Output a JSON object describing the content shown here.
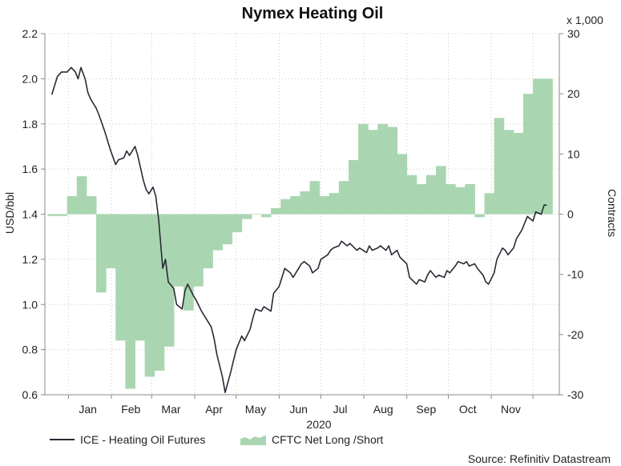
{
  "chart_data": {
    "type": "line",
    "title": "Nymex Heating Oil",
    "xlabel": "2020",
    "ylabel": "USD/bbl",
    "y2label": "Contracts",
    "y2_multiplier_label": "x 1,000",
    "source": "Source: Refinitiv Datastream",
    "x_months": [
      "Jan",
      "Feb",
      "Mar",
      "Apr",
      "May",
      "Jun",
      "Jul",
      "Aug",
      "Sep",
      "Oct",
      "Nov"
    ],
    "ylim": [
      0.6,
      2.2
    ],
    "yticks": [
      "0.6",
      "0.8",
      "1.0",
      "1.2",
      "1.4",
      "1.6",
      "1.8",
      "2.0",
      "2.2"
    ],
    "y2lim": [
      -30,
      30
    ],
    "y2ticks": [
      "-30",
      "-20",
      "-10",
      "0",
      "10",
      "20",
      "30"
    ],
    "grid": true,
    "legend_position": "bottom",
    "series": [
      {
        "name": "ICE - Heating Oil Futures",
        "axis": "left",
        "color": "#2a2a35",
        "points": [
          [
            "2019-12-20",
            1.93
          ],
          [
            "2019-12-24",
            2.01
          ],
          [
            "2019-12-27",
            2.03
          ],
          [
            "2019-12-31",
            2.03
          ],
          [
            "2020-01-03",
            2.05
          ],
          [
            "2020-01-06",
            2.03
          ],
          [
            "2020-01-08",
            2.0
          ],
          [
            "2020-01-10",
            2.05
          ],
          [
            "2020-01-13",
            2.0
          ],
          [
            "2020-01-15",
            1.94
          ],
          [
            "2020-01-17",
            1.91
          ],
          [
            "2020-01-21",
            1.87
          ],
          [
            "2020-01-23",
            1.84
          ],
          [
            "2020-01-27",
            1.77
          ],
          [
            "2020-01-29",
            1.73
          ],
          [
            "2020-01-31",
            1.69
          ],
          [
            "2020-02-04",
            1.62
          ],
          [
            "2020-02-06",
            1.64
          ],
          [
            "2020-02-10",
            1.65
          ],
          [
            "2020-02-12",
            1.68
          ],
          [
            "2020-02-14",
            1.66
          ],
          [
            "2020-02-18",
            1.7
          ],
          [
            "2020-02-20",
            1.66
          ],
          [
            "2020-02-24",
            1.55
          ],
          [
            "2020-02-26",
            1.51
          ],
          [
            "2020-02-28",
            1.49
          ],
          [
            "2020-03-02",
            1.52
          ],
          [
            "2020-03-04",
            1.48
          ],
          [
            "2020-03-06",
            1.38
          ],
          [
            "2020-03-09",
            1.16
          ],
          [
            "2020-03-11",
            1.2
          ],
          [
            "2020-03-13",
            1.1
          ],
          [
            "2020-03-17",
            1.07
          ],
          [
            "2020-03-19",
            1.0
          ],
          [
            "2020-03-23",
            0.98
          ],
          [
            "2020-03-25",
            1.06
          ],
          [
            "2020-03-27",
            1.09
          ],
          [
            "2020-03-31",
            1.04
          ],
          [
            "2020-04-02",
            1.02
          ],
          [
            "2020-04-06",
            0.97
          ],
          [
            "2020-04-08",
            0.95
          ],
          [
            "2020-04-13",
            0.9
          ],
          [
            "2020-04-15",
            0.85
          ],
          [
            "2020-04-17",
            0.78
          ],
          [
            "2020-04-21",
            0.68
          ],
          [
            "2020-04-23",
            0.61
          ],
          [
            "2020-04-27",
            0.7
          ],
          [
            "2020-04-29",
            0.75
          ],
          [
            "2020-05-01",
            0.8
          ],
          [
            "2020-05-05",
            0.86
          ],
          [
            "2020-05-07",
            0.84
          ],
          [
            "2020-05-11",
            0.89
          ],
          [
            "2020-05-13",
            0.94
          ],
          [
            "2020-05-15",
            0.98
          ],
          [
            "2020-05-19",
            0.97
          ],
          [
            "2020-05-21",
            0.99
          ],
          [
            "2020-05-26",
            0.97
          ],
          [
            "2020-05-28",
            1.05
          ],
          [
            "2020-06-01",
            1.08
          ],
          [
            "2020-06-03",
            1.12
          ],
          [
            "2020-06-05",
            1.16
          ],
          [
            "2020-06-09",
            1.14
          ],
          [
            "2020-06-11",
            1.12
          ],
          [
            "2020-06-15",
            1.16
          ],
          [
            "2020-06-17",
            1.18
          ],
          [
            "2020-06-19",
            1.19
          ],
          [
            "2020-06-23",
            1.17
          ],
          [
            "2020-06-25",
            1.14
          ],
          [
            "2020-06-29",
            1.16
          ],
          [
            "2020-07-01",
            1.2
          ],
          [
            "2020-07-06",
            1.22
          ],
          [
            "2020-07-08",
            1.24
          ],
          [
            "2020-07-10",
            1.25
          ],
          [
            "2020-07-14",
            1.26
          ],
          [
            "2020-07-16",
            1.28
          ],
          [
            "2020-07-20",
            1.26
          ],
          [
            "2020-07-22",
            1.27
          ],
          [
            "2020-07-27",
            1.24
          ],
          [
            "2020-07-29",
            1.25
          ],
          [
            "2020-08-03",
            1.23
          ],
          [
            "2020-08-05",
            1.26
          ],
          [
            "2020-08-07",
            1.24
          ],
          [
            "2020-08-11",
            1.25
          ],
          [
            "2020-08-13",
            1.26
          ],
          [
            "2020-08-17",
            1.24
          ],
          [
            "2020-08-19",
            1.26
          ],
          [
            "2020-08-21",
            1.22
          ],
          [
            "2020-08-25",
            1.24
          ],
          [
            "2020-08-27",
            1.21
          ],
          [
            "2020-09-01",
            1.18
          ],
          [
            "2020-09-03",
            1.12
          ],
          [
            "2020-09-08",
            1.09
          ],
          [
            "2020-09-10",
            1.11
          ],
          [
            "2020-09-14",
            1.1
          ],
          [
            "2020-09-16",
            1.13
          ],
          [
            "2020-09-18",
            1.15
          ],
          [
            "2020-09-22",
            1.12
          ],
          [
            "2020-09-24",
            1.13
          ],
          [
            "2020-09-28",
            1.12
          ],
          [
            "2020-09-30",
            1.15
          ],
          [
            "2020-10-02",
            1.14
          ],
          [
            "2020-10-06",
            1.17
          ],
          [
            "2020-10-08",
            1.19
          ],
          [
            "2020-10-12",
            1.18
          ],
          [
            "2020-10-14",
            1.19
          ],
          [
            "2020-10-16",
            1.17
          ],
          [
            "2020-10-20",
            1.18
          ],
          [
            "2020-10-22",
            1.16
          ],
          [
            "2020-10-26",
            1.13
          ],
          [
            "2020-10-28",
            1.1
          ],
          [
            "2020-10-30",
            1.09
          ],
          [
            "2020-11-03",
            1.14
          ],
          [
            "2020-11-05",
            1.2
          ],
          [
            "2020-11-09",
            1.25
          ],
          [
            "2020-11-11",
            1.24
          ],
          [
            "2020-11-13",
            1.22
          ],
          [
            "2020-11-17",
            1.25
          ],
          [
            "2020-11-19",
            1.29
          ],
          [
            "2020-11-23",
            1.33
          ],
          [
            "2020-11-25",
            1.36
          ],
          [
            "2020-11-27",
            1.39
          ],
          [
            "2020-12-01",
            1.37
          ],
          [
            "2020-12-03",
            1.41
          ],
          [
            "2020-12-07",
            1.4
          ],
          [
            "2020-12-09",
            1.44
          ],
          [
            "2020-12-11",
            1.44
          ]
        ]
      },
      {
        "name": "CFTC Net Long /Short",
        "axis": "right",
        "type": "area",
        "color": "#a9d6b0",
        "points": [
          [
            "2019-12-17",
            -0.3
          ],
          [
            "2019-12-24",
            -0.3
          ],
          [
            "2019-12-31",
            3.0
          ],
          [
            "2020-01-07",
            6.3
          ],
          [
            "2020-01-14",
            3.0
          ],
          [
            "2020-01-21",
            -13.0
          ],
          [
            "2020-01-28",
            -9.0
          ],
          [
            "2020-02-04",
            -21.0
          ],
          [
            "2020-02-11",
            -29.0
          ],
          [
            "2020-02-18",
            -21.0
          ],
          [
            "2020-02-25",
            -27.0
          ],
          [
            "2020-03-03",
            -26.0
          ],
          [
            "2020-03-10",
            -22.0
          ],
          [
            "2020-03-17",
            -12.0
          ],
          [
            "2020-03-24",
            -16.0
          ],
          [
            "2020-03-31",
            -12.0
          ],
          [
            "2020-04-07",
            -9.0
          ],
          [
            "2020-04-14",
            -6.0
          ],
          [
            "2020-04-21",
            -5.0
          ],
          [
            "2020-04-28",
            -3.0
          ],
          [
            "2020-05-05",
            -0.8
          ],
          [
            "2020-05-12",
            0.0
          ],
          [
            "2020-05-19",
            -0.5
          ],
          [
            "2020-05-26",
            1.0
          ],
          [
            "2020-06-02",
            2.5
          ],
          [
            "2020-06-09",
            3.0
          ],
          [
            "2020-06-16",
            3.8
          ],
          [
            "2020-06-23",
            5.5
          ],
          [
            "2020-06-30",
            3.0
          ],
          [
            "2020-07-07",
            3.5
          ],
          [
            "2020-07-14",
            5.5
          ],
          [
            "2020-07-21",
            9.0
          ],
          [
            "2020-07-28",
            15.0
          ],
          [
            "2020-08-04",
            14.0
          ],
          [
            "2020-08-11",
            15.0
          ],
          [
            "2020-08-18",
            14.5
          ],
          [
            "2020-08-25",
            10.0
          ],
          [
            "2020-09-01",
            6.5
          ],
          [
            "2020-09-08",
            5.0
          ],
          [
            "2020-09-15",
            6.5
          ],
          [
            "2020-09-22",
            8.0
          ],
          [
            "2020-09-29",
            5.0
          ],
          [
            "2020-10-06",
            4.5
          ],
          [
            "2020-10-13",
            5.0
          ],
          [
            "2020-10-20",
            -0.5
          ],
          [
            "2020-10-27",
            3.5
          ],
          [
            "2020-11-03",
            16.0
          ],
          [
            "2020-11-10",
            14.0
          ],
          [
            "2020-11-17",
            13.5
          ],
          [
            "2020-11-24",
            20.0
          ],
          [
            "2020-12-01",
            22.5
          ],
          [
            "2020-12-08",
            22.5
          ]
        ]
      }
    ]
  }
}
